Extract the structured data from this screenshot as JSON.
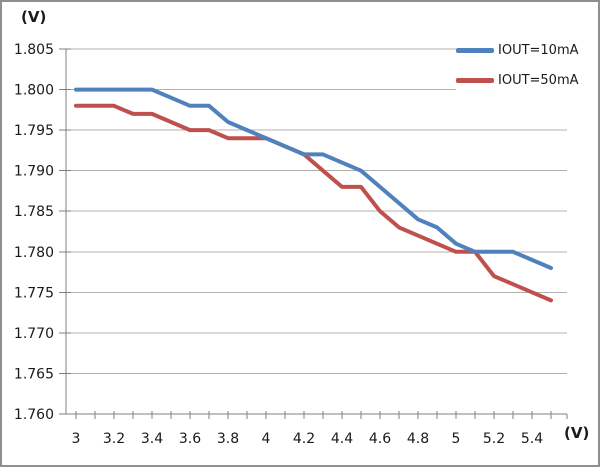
{
  "axes_units": {
    "y": "(V)",
    "x": "(V)"
  },
  "legend": [
    {
      "label": "IOUT=10mA",
      "color": "#4f81bd"
    },
    {
      "label": "IOUT=50mA",
      "color": "#c0504d"
    }
  ],
  "chart_data": {
    "type": "line",
    "title": "",
    "xlabel": "(V)",
    "ylabel": "(V)",
    "x": [
      3.0,
      3.1,
      3.2,
      3.3,
      3.4,
      3.5,
      3.6,
      3.7,
      3.8,
      3.9,
      4.0,
      4.1,
      4.2,
      4.3,
      4.4,
      4.5,
      4.6,
      4.7,
      4.8,
      4.9,
      5.0,
      5.1,
      5.2,
      5.3,
      5.4,
      5.5
    ],
    "series": [
      {
        "name": "IOUT=10mA",
        "color": "#4f81bd",
        "values": [
          1.8,
          1.8,
          1.8,
          1.8,
          1.8,
          1.799,
          1.798,
          1.798,
          1.796,
          1.795,
          1.794,
          1.793,
          1.792,
          1.792,
          1.791,
          1.79,
          1.788,
          1.786,
          1.784,
          1.783,
          1.781,
          1.78,
          1.78,
          1.78,
          1.779,
          1.778
        ]
      },
      {
        "name": "IOUT=50mA",
        "color": "#c0504d",
        "values": [
          1.798,
          1.798,
          1.798,
          1.797,
          1.797,
          1.796,
          1.795,
          1.795,
          1.794,
          1.794,
          1.794,
          1.793,
          1.792,
          1.79,
          1.788,
          1.788,
          1.785,
          1.783,
          1.782,
          1.781,
          1.78,
          1.78,
          1.777,
          1.776,
          1.775,
          1.774
        ]
      }
    ],
    "ylim": [
      1.76,
      1.805
    ],
    "xlim": [
      3.0,
      5.5
    ],
    "y_ticks": [
      1.805,
      1.8,
      1.795,
      1.79,
      1.785,
      1.78,
      1.775,
      1.77,
      1.765,
      1.76
    ],
    "x_tick_labels": [
      "3",
      "3.2",
      "3.4",
      "3.6",
      "3.8",
      "4",
      "4.2",
      "4.4",
      "4.6",
      "4.8",
      "5",
      "5.2",
      "5.4"
    ],
    "x_minor_tick_step": 0.1,
    "grid": "horizontal",
    "legend_position": "top-right",
    "colors": {
      "gridline": "#b0b0b0",
      "axis": "#808080",
      "text": "#1a1a1a",
      "frame": "#8f8f8f"
    }
  }
}
